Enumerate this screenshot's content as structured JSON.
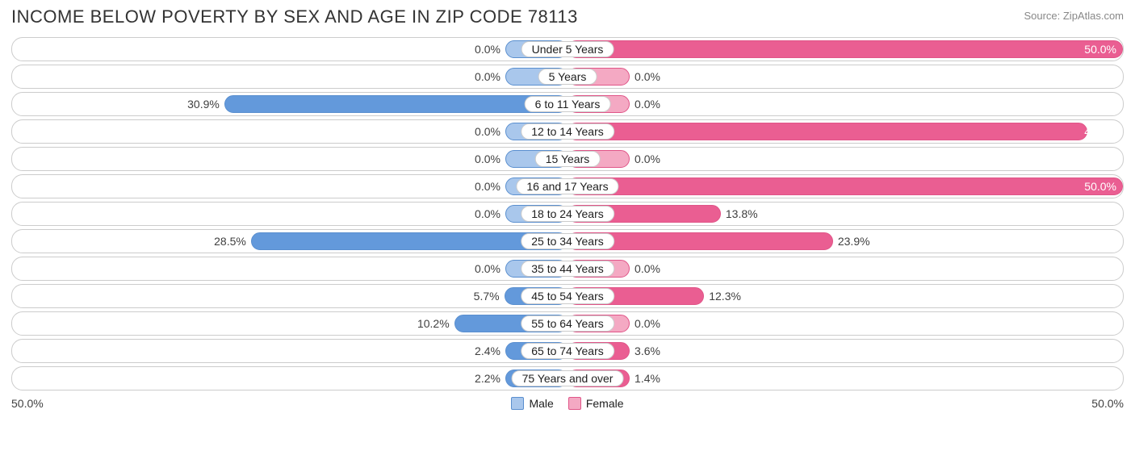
{
  "title": "INCOME BELOW POVERTY BY SEX AND AGE IN ZIP CODE 78113",
  "source": "Source: ZipAtlas.com",
  "chart": {
    "type": "diverging-bar",
    "max_pct": 50.0,
    "min_bar_pct": 5.6,
    "axis_left_label": "50.0%",
    "axis_right_label": "50.0%",
    "male": {
      "fill_light": "#a9c7ec",
      "fill_dark": "#6399db",
      "border": "#5a8fcf",
      "legend_label": "Male"
    },
    "female": {
      "fill_light": "#f4a9c3",
      "fill_dark": "#ea5e92",
      "border": "#e05588",
      "legend_label": "Female"
    },
    "row_border_color": "#cccccc",
    "background_color": "#ffffff",
    "title_color": "#333333",
    "source_color": "#888888",
    "label_color": "#404040",
    "title_fontsize": 22,
    "label_fontsize": 14,
    "rows": [
      {
        "category": "Under 5 Years",
        "male": 0.0,
        "female": 50.0
      },
      {
        "category": "5 Years",
        "male": 0.0,
        "female": 0.0
      },
      {
        "category": "6 to 11 Years",
        "male": 30.9,
        "female": 0.0
      },
      {
        "category": "12 to 14 Years",
        "male": 0.0,
        "female": 46.8
      },
      {
        "category": "15 Years",
        "male": 0.0,
        "female": 0.0
      },
      {
        "category": "16 and 17 Years",
        "male": 0.0,
        "female": 50.0
      },
      {
        "category": "18 to 24 Years",
        "male": 0.0,
        "female": 13.8
      },
      {
        "category": "25 to 34 Years",
        "male": 28.5,
        "female": 23.9
      },
      {
        "category": "35 to 44 Years",
        "male": 0.0,
        "female": 0.0
      },
      {
        "category": "45 to 54 Years",
        "male": 5.7,
        "female": 12.3
      },
      {
        "category": "55 to 64 Years",
        "male": 10.2,
        "female": 0.0
      },
      {
        "category": "65 to 74 Years",
        "male": 2.4,
        "female": 3.6
      },
      {
        "category": "75 Years and over",
        "male": 2.2,
        "female": 1.4
      }
    ]
  }
}
